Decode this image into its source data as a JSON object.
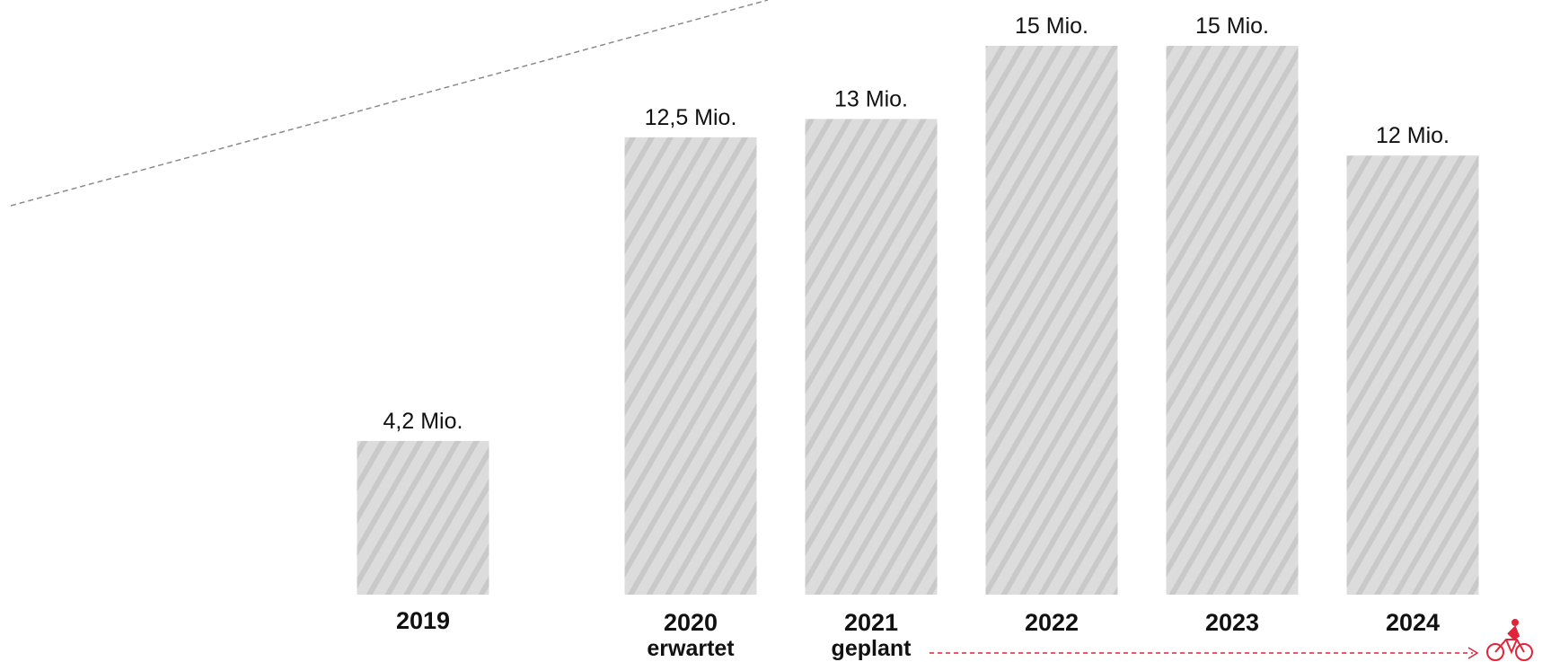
{
  "chart_data": {
    "type": "bar",
    "title": "",
    "xlabel": "",
    "ylabel": "",
    "categories": [
      "2019",
      "2020",
      "2021",
      "2022",
      "2023",
      "2024"
    ],
    "sublabels": [
      "",
      "erwartet",
      "geplant",
      "",
      "",
      ""
    ],
    "values": [
      4.2,
      12.5,
      13,
      15,
      15,
      12
    ],
    "value_labels": [
      "4,2 Mio.",
      "12,5 Mio.",
      "13 Mio.",
      "15 Mio.",
      "15 Mio.",
      "12 Mio."
    ],
    "ylim": [
      0,
      15
    ],
    "grid": false,
    "legend": "none",
    "bar_fill": "hatched-gray"
  },
  "colors": {
    "bar": "#dcdcdc",
    "hatch": "#c9c9c9",
    "text": "#111111",
    "trend_line": "#8a8a8a",
    "accent": "#e0243a"
  },
  "icons": {
    "cyclist": "cyclist-icon"
  }
}
